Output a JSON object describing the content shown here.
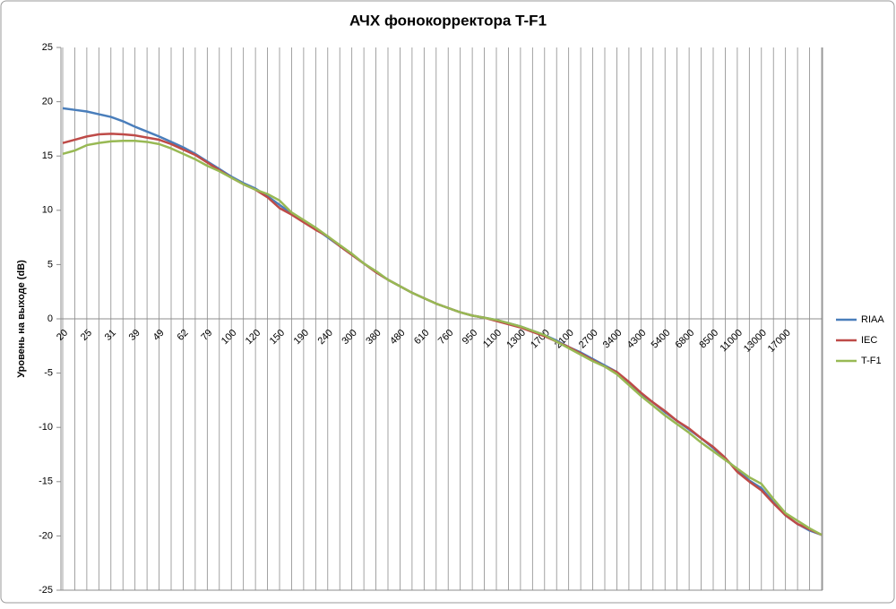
{
  "chart_data": {
    "type": "line",
    "title": "АЧХ фонокорректора T-F1",
    "y_label": "Уровень на выходе (dB)",
    "categories": [
      "20",
      null,
      "25",
      null,
      "31",
      null,
      "39",
      null,
      "49",
      null,
      "62",
      null,
      "79",
      null,
      "100",
      null,
      "120",
      null,
      "150",
      null,
      "190",
      null,
      "240",
      null,
      "300",
      null,
      "380",
      null,
      "480",
      null,
      "610",
      null,
      "760",
      null,
      "950",
      null,
      "1100",
      null,
      "1300",
      null,
      "1700",
      null,
      "2100",
      null,
      "2700",
      null,
      "3400",
      null,
      "4300",
      null,
      "5400",
      null,
      "6800",
      null,
      "8500",
      null,
      "11000",
      null,
      "13000",
      null,
      "17000",
      null,
      null,
      null
    ],
    "series": [
      {
        "name": "RIAA",
        "color": "#4a7ebb",
        "values": [
          19.4,
          19.25,
          19.1,
          18.85,
          18.6,
          18.2,
          17.7,
          17.25,
          16.8,
          16.3,
          15.8,
          15.2,
          14.5,
          13.8,
          13.1,
          12.5,
          12.0,
          11.3,
          10.5,
          9.7,
          9.0,
          8.3,
          7.5,
          6.7,
          5.9,
          5.1,
          4.3,
          3.6,
          3.0,
          2.4,
          1.9,
          1.4,
          1.0,
          0.6,
          0.3,
          0.1,
          -0.1,
          -0.4,
          -0.7,
          -1.1,
          -1.5,
          -2.0,
          -2.6,
          -3.1,
          -3.7,
          -4.3,
          -4.9,
          -5.9,
          -6.9,
          -7.7,
          -8.6,
          -9.4,
          -10.2,
          -11.0,
          -11.9,
          -12.9,
          -13.9,
          -14.9,
          -15.6,
          -16.9,
          -18.1,
          -18.9,
          -19.5,
          -19.9
        ]
      },
      {
        "name": "IEC",
        "color": "#be4b48",
        "values": [
          16.2,
          16.5,
          16.8,
          17.0,
          17.05,
          17.0,
          16.9,
          16.7,
          16.5,
          16.1,
          15.6,
          15.1,
          14.4,
          13.7,
          13.0,
          12.4,
          11.9,
          11.2,
          10.2,
          9.6,
          8.9,
          8.2,
          7.6,
          6.7,
          5.9,
          5.1,
          4.3,
          3.6,
          3.0,
          2.4,
          1.9,
          1.4,
          1.0,
          0.6,
          0.3,
          0.1,
          -0.2,
          -0.5,
          -0.8,
          -1.2,
          -1.6,
          -2.1,
          -2.6,
          -3.2,
          -3.8,
          -4.4,
          -4.9,
          -5.8,
          -6.8,
          -7.7,
          -8.5,
          -9.4,
          -10.1,
          -11.0,
          -11.8,
          -12.8,
          -14.1,
          -15.0,
          -15.8,
          -17.0,
          -18.1,
          -18.9,
          -19.4,
          -19.9
        ]
      },
      {
        "name": "T-F1",
        "color": "#98b954",
        "values": [
          15.2,
          15.5,
          16.0,
          16.2,
          16.35,
          16.4,
          16.4,
          16.3,
          16.1,
          15.7,
          15.2,
          14.7,
          14.1,
          13.6,
          13.0,
          12.4,
          11.9,
          11.5,
          10.9,
          9.8,
          9.1,
          8.4,
          7.6,
          6.8,
          6.0,
          5.1,
          4.4,
          3.6,
          3.0,
          2.4,
          1.9,
          1.4,
          1.0,
          0.6,
          0.3,
          0.1,
          -0.1,
          -0.4,
          -0.7,
          -1.1,
          -1.5,
          -2.1,
          -2.7,
          -3.3,
          -3.9,
          -4.4,
          -5.1,
          -6.1,
          -7.1,
          -8.0,
          -8.9,
          -9.7,
          -10.5,
          -11.4,
          -12.2,
          -13.0,
          -13.8,
          -14.6,
          -15.2,
          -16.6,
          -17.9,
          -18.6,
          -19.3,
          -19.9
        ]
      }
    ],
    "ylim": [
      -25,
      25
    ],
    "yticks": [
      -25,
      -20,
      -15,
      -10,
      -5,
      0,
      5,
      10,
      15,
      20,
      25
    ],
    "x_grid": true,
    "y_grid": false,
    "legend": "right"
  }
}
